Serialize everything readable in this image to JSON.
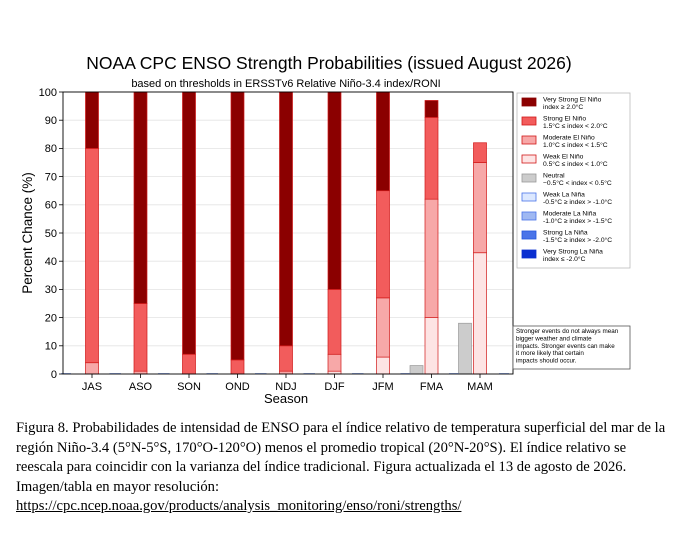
{
  "chart_data": {
    "type": "bar",
    "title": "NOAA CPC ENSO Strength Probabilities (issued August 2026)",
    "subtitle": "based on thresholds in ERSSTv6 Relative Niño-3.4 index/RONI",
    "xlabel": "Season",
    "ylabel": "Percent Chance (%)",
    "ylim": [
      0,
      100
    ],
    "yticks": [
      0,
      10,
      20,
      30,
      40,
      50,
      60,
      70,
      80,
      90,
      100
    ],
    "categories": [
      "JAS",
      "ASO",
      "SON",
      "OND",
      "NDJ",
      "DJF",
      "JFM",
      "FMA",
      "MAM"
    ],
    "grid": true,
    "stacked": true,
    "legend_position": "right",
    "series": [
      {
        "name": "Very Strong El Niño",
        "range": "index ≥ 2.0°C",
        "color": "#8b0000",
        "values": [
          20,
          75,
          93,
          95,
          90,
          70,
          35,
          6,
          0
        ]
      },
      {
        "name": "Strong El Niño",
        "range": "1.5°C ≤ index < 2.0°C",
        "color": "#f25c5c",
        "values": [
          76,
          24,
          7,
          5,
          9,
          23,
          38,
          29,
          7
        ]
      },
      {
        "name": "Moderate El Niño",
        "range": "1.0°C ≤ index < 1.5°C",
        "color": "#f7a8a8",
        "values": [
          4,
          1,
          0,
          0,
          1,
          6,
          21,
          42,
          32
        ]
      },
      {
        "name": "Weak El Niño",
        "range": "0.5°C ≤ index < 1.0°C",
        "color": "#fde4e4",
        "values": [
          0,
          0,
          0,
          0,
          0,
          1,
          6,
          20,
          43
        ]
      },
      {
        "name": "Neutral",
        "range": "−0.5°C < index < 0.5°C",
        "color": "#cccccc",
        "values": [
          0,
          0,
          0,
          0,
          0,
          0,
          0,
          3,
          18
        ]
      },
      {
        "name": "Weak La Niña",
        "range": "-0.5°C ≥ index > -1.0°C",
        "color": "#dce8ff",
        "values": [
          0,
          0,
          0,
          0,
          0,
          0,
          0,
          0,
          0
        ]
      },
      {
        "name": "Moderate La Niña",
        "range": "-1.0°C ≥ index > -1.5°C",
        "color": "#9fb8f2",
        "values": [
          0,
          0,
          0,
          0,
          0,
          0,
          0,
          0,
          0
        ]
      },
      {
        "name": "Strong La Niña",
        "range": "-1.5°C ≥ index > -2.0°C",
        "color": "#4a74e8",
        "values": [
          0,
          0,
          0,
          0,
          0,
          0,
          0,
          0,
          0
        ]
      },
      {
        "name": "Very Strong La Niña",
        "range": "index ≤ -2.0°C",
        "color": "#0a2fd0",
        "values": [
          0,
          0,
          0,
          0,
          0,
          0,
          0,
          0,
          0
        ]
      }
    ],
    "annotation": "Stronger events do not always mean bigger weather and climate impacts. Stronger events can make it more likely that certain impacts should occur."
  },
  "caption": {
    "text": "Figura 8. Probabilidades de intensidad de ENSO para el índice relativo de temperatura superficial del mar de la región Niño-3.4 (5°N-5°S, 170°O-120°O) menos el promedio tropical (20°N-20°S). El índice relativo se reescala para coincidir con la varianza del índice tradicional. Figura actualizada el 13 de agosto de 2026. Imagen/tabla en mayor resolución:",
    "link_text": "https://cpc.ncep.noaa.gov/products/analysis_monitoring/enso/roni/strengths/"
  }
}
